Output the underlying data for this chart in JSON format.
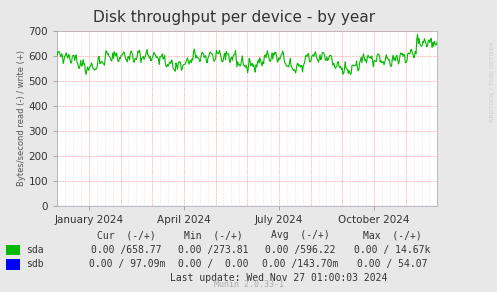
{
  "title": "Disk throughput per device - by year",
  "ylabel": "Bytes/second read (-) / write (+)",
  "xlabel_ticks": [
    "January 2024",
    "April 2024",
    "July 2024",
    "October 2024"
  ],
  "xtick_positions": [
    0.0833,
    0.3333,
    0.5833,
    0.8333
  ],
  "ylim": [
    0,
    700
  ],
  "yticks": [
    0,
    100,
    200,
    300,
    400,
    500,
    600,
    700
  ],
  "bg_color": "#e8e8e8",
  "plot_bg": "#ffffff",
  "grid_color": "#ff9999",
  "grid_color2": "#ffcccc",
  "sda_color": "#00bb00",
  "sdb_color": "#0000ff",
  "watermark": "RRDTOOL / TOBI OETIKER",
  "footer_text": "Munin 2.0.33-1",
  "title_fontsize": 11,
  "tick_fontsize": 7.5,
  "label_fontsize": 6,
  "stats_fontsize": 7,
  "stats_header": "Cur  (-/+)          Min  (-/+)          Avg  (-/+)          Max  (-/+)",
  "stats_sda": "0.00 /658.77         0.00 /273.81         0.00 /596.22         0.00 / 14.67k",
  "stats_sdb": "0.00 / 97.09m        0.00 /  0.00         0.00 /143.70m        0.00 / 54.07",
  "last_update": "Last update: Wed Nov 27 01:00:03 2024",
  "n_points": 500,
  "seed": 42
}
